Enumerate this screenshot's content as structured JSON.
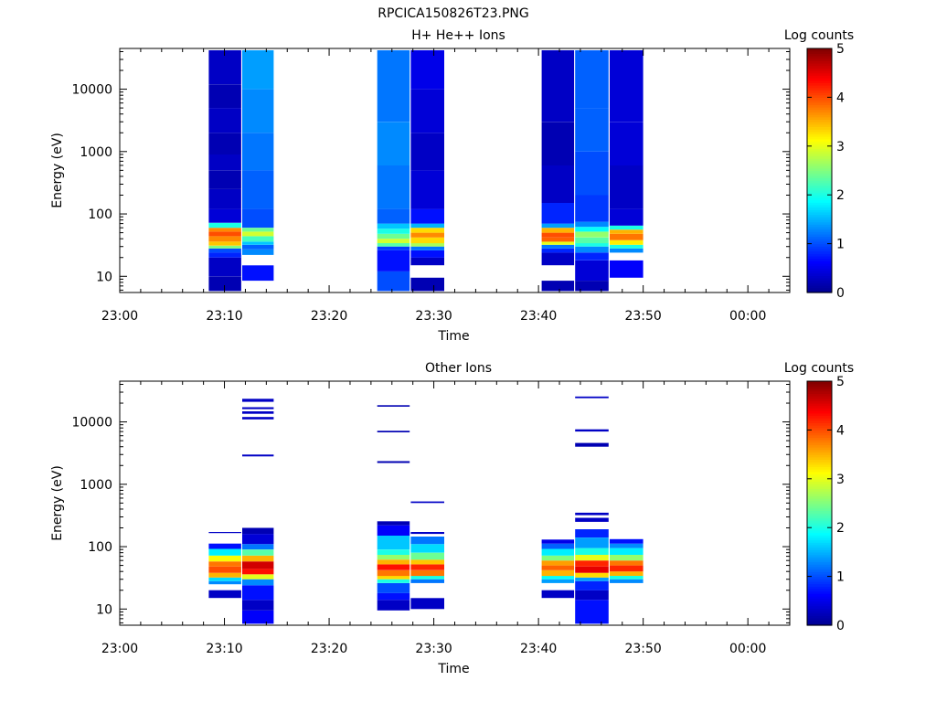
{
  "figure_title": "RPCICA150826T23.PNG",
  "colors": {
    "colormap": [
      "#00008f",
      "#0000ff",
      "#0080ff",
      "#00ffff",
      "#80ff80",
      "#ffff00",
      "#ff8000",
      "#ff0000",
      "#800000"
    ],
    "axes": "#000000",
    "background": "#ffffff"
  },
  "chart_data": [
    {
      "type": "heatmap",
      "title": "H+ He++ Ions",
      "xlabel": "Time",
      "ylabel": "Energy (eV)",
      "x_tick_labels": [
        "23:00",
        "23:10",
        "23:20",
        "23:30",
        "23:40",
        "23:50",
        "00:00"
      ],
      "y_tick_labels": [
        "10",
        "100",
        "1000",
        "10000"
      ],
      "y_scale": "log",
      "ylim": [
        5.5,
        45000
      ],
      "xlim_minutes": [
        0,
        64
      ],
      "colorbar": {
        "label": "Log counts",
        "range": [
          0,
          5
        ],
        "tick_labels": [
          "0",
          "1",
          "2",
          "3",
          "4",
          "5"
        ]
      },
      "sweeps": [
        {
          "start_min": 8.5,
          "end_min": 11.6,
          "cells": [
            [
              5.8,
              10,
              0.2
            ],
            [
              10,
              20,
              0.3
            ],
            [
              20,
              24,
              0.8
            ],
            [
              24,
              28,
              1.0
            ],
            [
              28,
              31,
              2.5
            ],
            [
              31,
              36,
              3.4
            ],
            [
              36,
              44,
              3.7
            ],
            [
              44,
              52,
              4.0
            ],
            [
              52,
              60,
              3.7
            ],
            [
              60,
              72,
              2.0
            ],
            [
              72,
              120,
              0.4
            ],
            [
              120,
              250,
              0.3
            ],
            [
              250,
              500,
              0.2
            ],
            [
              500,
              900,
              0.3
            ],
            [
              900,
              2000,
              0.2
            ],
            [
              2000,
              5000,
              0.3
            ],
            [
              5000,
              12000,
              0.2
            ],
            [
              12000,
              42000,
              0.3
            ]
          ]
        },
        {
          "start_min": 11.7,
          "end_min": 14.7,
          "cells": [
            [
              8.5,
              15,
              0.7
            ],
            [
              22,
              27,
              1.3
            ],
            [
              27,
              32,
              1.1
            ],
            [
              32,
              36,
              1.6
            ],
            [
              36,
              44,
              2.2
            ],
            [
              44,
              52,
              2.9
            ],
            [
              52,
              60,
              2.4
            ],
            [
              60,
              120,
              1.0
            ],
            [
              120,
              500,
              1.1
            ],
            [
              500,
              2000,
              1.2
            ],
            [
              2000,
              10000,
              1.3
            ],
            [
              10000,
              42000,
              1.4
            ]
          ]
        },
        {
          "start_min": 24.6,
          "end_min": 27.7,
          "cells": [
            [
              5.8,
              12,
              1.0
            ],
            [
              12,
              26,
              0.7
            ],
            [
              26,
              30,
              0.9
            ],
            [
              30,
              34,
              2.3
            ],
            [
              34,
              40,
              2.9
            ],
            [
              40,
              48,
              2.4
            ],
            [
              48,
              58,
              2.0
            ],
            [
              58,
              70,
              1.6
            ],
            [
              70,
              120,
              1.1
            ],
            [
              120,
              600,
              1.2
            ],
            [
              600,
              3000,
              1.3
            ],
            [
              3000,
              42000,
              1.2
            ]
          ]
        },
        {
          "start_min": 27.8,
          "end_min": 31.0,
          "cells": [
            [
              5.8,
              9.5,
              0.2
            ],
            [
              15,
              20,
              0.3
            ],
            [
              20,
              26,
              0.7
            ],
            [
              26,
              30,
              1.2
            ],
            [
              30,
              34,
              2.7
            ],
            [
              34,
              42,
              3.3
            ],
            [
              42,
              50,
              3.7
            ],
            [
              50,
              60,
              3.3
            ],
            [
              60,
              70,
              1.5
            ],
            [
              70,
              120,
              0.7
            ],
            [
              120,
              500,
              0.4
            ],
            [
              500,
              2000,
              0.3
            ],
            [
              2000,
              10000,
              0.4
            ],
            [
              10000,
              42000,
              0.5
            ]
          ]
        },
        {
          "start_min": 40.3,
          "end_min": 43.4,
          "cells": [
            [
              5.8,
              8.5,
              0.2
            ],
            [
              15,
              24,
              0.3
            ],
            [
              24,
              28,
              0.8
            ],
            [
              28,
              32,
              1.2
            ],
            [
              32,
              36,
              3.0
            ],
            [
              36,
              42,
              3.9
            ],
            [
              42,
              50,
              4.0
            ],
            [
              50,
              60,
              3.5
            ],
            [
              60,
              70,
              1.4
            ],
            [
              70,
              150,
              0.8
            ],
            [
              150,
              600,
              0.3
            ],
            [
              600,
              3000,
              0.2
            ],
            [
              3000,
              42000,
              0.3
            ]
          ]
        },
        {
          "start_min": 43.5,
          "end_min": 46.7,
          "cells": [
            [
              5.8,
              8.5,
              0.2
            ],
            [
              8.5,
              18,
              0.4
            ],
            [
              18,
              24,
              0.8
            ],
            [
              24,
              30,
              1.3
            ],
            [
              30,
              34,
              2.0
            ],
            [
              34,
              42,
              2.3
            ],
            [
              42,
              52,
              2.6
            ],
            [
              52,
              62,
              1.9
            ],
            [
              62,
              75,
              1.3
            ],
            [
              75,
              200,
              0.9
            ],
            [
              200,
              1000,
              1.0
            ],
            [
              1000,
              5000,
              1.1
            ],
            [
              5000,
              42000,
              1.1
            ]
          ]
        },
        {
          "start_min": 46.8,
          "end_min": 50.0,
          "cells": [
            [
              9.5,
              18,
              0.6
            ],
            [
              24,
              28,
              1.3
            ],
            [
              28,
              32,
              2.0
            ],
            [
              32,
              38,
              3.2
            ],
            [
              38,
              48,
              3.8
            ],
            [
              48,
              56,
              3.5
            ],
            [
              56,
              65,
              2.0
            ],
            [
              65,
              120,
              0.4
            ],
            [
              120,
              600,
              0.3
            ],
            [
              600,
              3000,
              0.4
            ],
            [
              3000,
              42000,
              0.4
            ]
          ]
        }
      ]
    },
    {
      "type": "heatmap",
      "title": "Other Ions",
      "xlabel": "Time",
      "ylabel": "Energy (eV)",
      "x_tick_labels": [
        "23:00",
        "23:10",
        "23:20",
        "23:30",
        "23:40",
        "23:50",
        "00:00"
      ],
      "y_tick_labels": [
        "10",
        "100",
        "1000",
        "10000"
      ],
      "y_scale": "log",
      "ylim": [
        5.5,
        45000
      ],
      "xlim_minutes": [
        0,
        64
      ],
      "colorbar": {
        "label": "Log counts",
        "range": [
          0,
          5
        ],
        "tick_labels": [
          "0",
          "1",
          "2",
          "3",
          "4",
          "5"
        ]
      },
      "sweeps": [
        {
          "start_min": 8.5,
          "end_min": 11.6,
          "cells": [
            [
              15,
              20,
              0.3
            ],
            [
              25,
              28,
              1.3
            ],
            [
              28,
              32,
              1.7
            ],
            [
              32,
              38,
              3.5
            ],
            [
              38,
              48,
              4.0
            ],
            [
              48,
              58,
              3.8
            ],
            [
              58,
              72,
              3.1
            ],
            [
              72,
              92,
              1.8
            ],
            [
              92,
              112,
              0.7
            ],
            [
              165,
              172,
              0.3
            ]
          ]
        },
        {
          "start_min": 11.7,
          "end_min": 14.7,
          "cells": [
            [
              5.8,
              9.5,
              0.6
            ],
            [
              9.5,
              14,
              0.3
            ],
            [
              14,
              24,
              0.7
            ],
            [
              24,
              30,
              1.3
            ],
            [
              30,
              36,
              3.0
            ],
            [
              36,
              44,
              4.3
            ],
            [
              44,
              58,
              4.6
            ],
            [
              58,
              72,
              3.5
            ],
            [
              72,
              90,
              2.3
            ],
            [
              90,
              110,
              1.2
            ],
            [
              110,
              160,
              0.4
            ],
            [
              160,
              200,
              0.2
            ],
            [
              2800,
              3000,
              0.3
            ],
            [
              11000,
              12000,
              0.3
            ],
            [
              13500,
              14800,
              0.3
            ],
            [
              16000,
              17200,
              0.3
            ],
            [
              21000,
              23500,
              0.3
            ]
          ]
        },
        {
          "start_min": 24.6,
          "end_min": 27.7,
          "cells": [
            [
              9.5,
              14,
              0.3
            ],
            [
              14,
              18,
              0.7
            ],
            [
              18,
              26,
              1.0
            ],
            [
              26,
              30,
              2.0
            ],
            [
              30,
              34,
              3.3
            ],
            [
              34,
              42,
              3.8
            ],
            [
              42,
              52,
              4.3
            ],
            [
              52,
              62,
              3.5
            ],
            [
              62,
              74,
              2.6
            ],
            [
              74,
              90,
              2.0
            ],
            [
              90,
              150,
              1.6
            ],
            [
              150,
              220,
              0.6
            ],
            [
              220,
              255,
              0.2
            ],
            [
              2200,
              2350,
              0.2
            ],
            [
              6800,
              7200,
              0.2
            ],
            [
              17500,
              18500,
              0.2
            ]
          ]
        },
        {
          "start_min": 27.8,
          "end_min": 31.0,
          "cells": [
            [
              10,
              15,
              0.3
            ],
            [
              26,
              30,
              1.2
            ],
            [
              30,
              34,
              2.0
            ],
            [
              34,
              42,
              3.8
            ],
            [
              42,
              52,
              4.2
            ],
            [
              52,
              62,
              3.4
            ],
            [
              62,
              80,
              2.4
            ],
            [
              80,
              110,
              1.7
            ],
            [
              110,
              145,
              1.2
            ],
            [
              160,
              172,
              0.3
            ],
            [
              500,
              530,
              0.3
            ]
          ]
        },
        {
          "start_min": 40.3,
          "end_min": 43.4,
          "cells": [
            [
              15,
              20,
              0.3
            ],
            [
              26,
              30,
              1.4
            ],
            [
              30,
              34,
              1.9
            ],
            [
              34,
              42,
              3.5
            ],
            [
              42,
              50,
              3.9
            ],
            [
              50,
              60,
              3.6
            ],
            [
              60,
              72,
              2.5
            ],
            [
              72,
              92,
              1.8
            ],
            [
              92,
              112,
              1.1
            ],
            [
              112,
              130,
              0.5
            ]
          ]
        },
        {
          "start_min": 43.5,
          "end_min": 46.7,
          "cells": [
            [
              5.8,
              14,
              0.7
            ],
            [
              14,
              20,
              0.3
            ],
            [
              20,
              28,
              0.8
            ],
            [
              28,
              32,
              1.4
            ],
            [
              32,
              38,
              3.3
            ],
            [
              38,
              48,
              4.5
            ],
            [
              48,
              60,
              4.2
            ],
            [
              60,
              74,
              3.0
            ],
            [
              74,
              95,
              2.0
            ],
            [
              95,
              140,
              1.4
            ],
            [
              140,
              190,
              0.8
            ],
            [
              250,
              290,
              0.3
            ],
            [
              320,
              350,
              0.3
            ],
            [
              4000,
              4600,
              0.2
            ],
            [
              7000,
              7600,
              0.3
            ],
            [
              24000,
              25500,
              0.3
            ]
          ]
        },
        {
          "start_min": 46.8,
          "end_min": 50.0,
          "cells": [
            [
              26,
              30,
              1.3
            ],
            [
              30,
              34,
              2.0
            ],
            [
              34,
              40,
              3.5
            ],
            [
              40,
              50,
              4.2
            ],
            [
              50,
              60,
              3.8
            ],
            [
              60,
              74,
              2.6
            ],
            [
              74,
              95,
              1.8
            ],
            [
              95,
              112,
              1.3
            ],
            [
              112,
              132,
              0.7
            ]
          ]
        }
      ]
    }
  ]
}
